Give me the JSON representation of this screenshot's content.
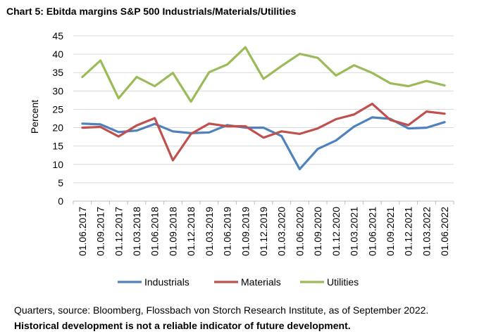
{
  "chart_data": {
    "type": "line",
    "title": "Chart 5: Ebitda margins S&P 500 Industrials/Materials/Utilities",
    "xlabel": "",
    "ylabel": "Percent",
    "ylim": [
      0,
      45
    ],
    "yticks": [
      0,
      5,
      10,
      15,
      20,
      25,
      30,
      35,
      40,
      45
    ],
    "grid": "horizontal",
    "legend_position": "bottom",
    "categories": [
      "01.06.2017",
      "01.09.2017",
      "01.12.2017",
      "01.03.2018",
      "01.06.2018",
      "01.09.2018",
      "01.12.2018",
      "01.03.2019",
      "01.06.2019",
      "01.09.2019",
      "01.12.2019",
      "01.03.2020",
      "01.06.2020",
      "01.09.2020",
      "01.12.2020",
      "01.03.2021",
      "01.06.2021",
      "01.09.2021",
      "01.12.2021",
      "01.03.2022",
      "01.06.2022"
    ],
    "series": [
      {
        "name": "Industrials",
        "color": "#4f81bd",
        "values": [
          21.1,
          20.9,
          18.8,
          19.2,
          21.0,
          19.0,
          18.5,
          18.7,
          20.7,
          20.0,
          20.0,
          17.7,
          8.7,
          14.2,
          16.5,
          20.3,
          22.8,
          22.4,
          19.8,
          20.0,
          21.5
        ]
      },
      {
        "name": "Materials",
        "color": "#c0504d",
        "values": [
          20.0,
          20.2,
          17.6,
          20.6,
          22.6,
          11.1,
          18.3,
          21.1,
          20.4,
          20.4,
          17.3,
          19.0,
          18.3,
          19.8,
          22.3,
          23.6,
          26.5,
          22.1,
          20.7,
          24.4,
          23.8
        ]
      },
      {
        "name": "Utilities",
        "color": "#9bbb59",
        "values": [
          33.8,
          38.3,
          28.0,
          33.8,
          31.3,
          34.9,
          27.1,
          35.1,
          37.2,
          41.9,
          33.3,
          36.8,
          40.1,
          39.0,
          34.2,
          37.0,
          34.9,
          32.1,
          31.3,
          32.7,
          31.5
        ]
      }
    ]
  },
  "footer": {
    "source": "Quarters, source: Bloomberg, Flossbach von Storch Research Institute, as of September 2022.",
    "disclaimer": "Historical development is not a reliable indicator of future development."
  }
}
